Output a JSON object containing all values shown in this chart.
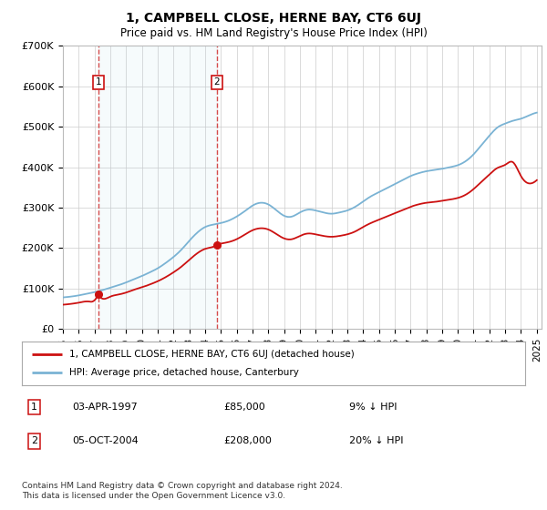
{
  "title": "1, CAMPBELL CLOSE, HERNE BAY, CT6 6UJ",
  "subtitle": "Price paid vs. HM Land Registry's House Price Index (HPI)",
  "ylim": [
    0,
    700000
  ],
  "yticks": [
    0,
    100000,
    200000,
    300000,
    400000,
    500000,
    600000,
    700000
  ],
  "ytick_labels": [
    "£0",
    "£100K",
    "£200K",
    "£300K",
    "£400K",
    "£500K",
    "£600K",
    "£700K"
  ],
  "x_start_year": 1995,
  "x_end_year": 2025,
  "sale1_date": 1997.25,
  "sale1_price": 85000,
  "sale2_date": 2004.75,
  "sale2_price": 208000,
  "hpi_color": "#7ab3d4",
  "price_color": "#cc1111",
  "dashed_line_color": "#cc1111",
  "plot_bg_color": "#ffffff",
  "fig_bg_color": "#ffffff",
  "grid_color": "#cccccc",
  "legend_label_price": "1, CAMPBELL CLOSE, HERNE BAY, CT6 6UJ (detached house)",
  "legend_label_hpi": "HPI: Average price, detached house, Canterbury",
  "footnote": "Contains HM Land Registry data © Crown copyright and database right 2024.\nThis data is licensed under the Open Government Licence v3.0.",
  "sale1_label": "1",
  "sale2_label": "2",
  "table_rows": [
    {
      "num": "1",
      "date": "03-APR-1997",
      "price": "£85,000",
      "hpi": "9% ↓ HPI"
    },
    {
      "num": "2",
      "date": "05-OCT-2004",
      "price": "£208,000",
      "hpi": "20% ↓ HPI"
    }
  ],
  "hpi_points": [
    [
      1995.0,
      78000
    ],
    [
      1995.5,
      80000
    ],
    [
      1996.0,
      83000
    ],
    [
      1996.5,
      87000
    ],
    [
      1997.0,
      91000
    ],
    [
      1997.5,
      96000
    ],
    [
      1998.0,
      102000
    ],
    [
      1998.5,
      108000
    ],
    [
      1999.0,
      115000
    ],
    [
      1999.5,
      123000
    ],
    [
      2000.0,
      131000
    ],
    [
      2000.5,
      140000
    ],
    [
      2001.0,
      150000
    ],
    [
      2001.5,
      163000
    ],
    [
      2002.0,
      178000
    ],
    [
      2002.5,
      196000
    ],
    [
      2003.0,
      218000
    ],
    [
      2003.5,
      238000
    ],
    [
      2004.0,
      252000
    ],
    [
      2004.5,
      258000
    ],
    [
      2005.0,
      262000
    ],
    [
      2005.5,
      268000
    ],
    [
      2006.0,
      278000
    ],
    [
      2006.5,
      291000
    ],
    [
      2007.0,
      305000
    ],
    [
      2007.5,
      312000
    ],
    [
      2008.0,
      308000
    ],
    [
      2008.5,
      294000
    ],
    [
      2009.0,
      280000
    ],
    [
      2009.5,
      278000
    ],
    [
      2010.0,
      288000
    ],
    [
      2010.5,
      295000
    ],
    [
      2011.0,
      293000
    ],
    [
      2011.5,
      288000
    ],
    [
      2012.0,
      285000
    ],
    [
      2012.5,
      288000
    ],
    [
      2013.0,
      293000
    ],
    [
      2013.5,
      302000
    ],
    [
      2014.0,
      315000
    ],
    [
      2014.5,
      328000
    ],
    [
      2015.0,
      338000
    ],
    [
      2015.5,
      348000
    ],
    [
      2016.0,
      358000
    ],
    [
      2016.5,
      368000
    ],
    [
      2017.0,
      378000
    ],
    [
      2017.5,
      385000
    ],
    [
      2018.0,
      390000
    ],
    [
      2018.5,
      393000
    ],
    [
      2019.0,
      396000
    ],
    [
      2019.5,
      400000
    ],
    [
      2020.0,
      405000
    ],
    [
      2020.5,
      415000
    ],
    [
      2021.0,
      432000
    ],
    [
      2021.5,
      455000
    ],
    [
      2022.0,
      478000
    ],
    [
      2022.5,
      498000
    ],
    [
      2023.0,
      508000
    ],
    [
      2023.5,
      515000
    ],
    [
      2024.0,
      520000
    ],
    [
      2024.5,
      528000
    ],
    [
      2025.0,
      535000
    ]
  ],
  "price_points_seg1": [
    [
      1995.0,
      60000
    ],
    [
      1995.5,
      62000
    ],
    [
      1996.0,
      65000
    ],
    [
      1996.5,
      68000
    ],
    [
      1997.0,
      71000
    ],
    [
      1997.25,
      85000
    ]
  ],
  "price_points_seg2": [
    [
      1997.25,
      85000
    ],
    [
      1997.5,
      75000
    ],
    [
      1998.0,
      80000
    ],
    [
      1998.5,
      85000
    ],
    [
      1999.0,
      90000
    ],
    [
      1999.5,
      97000
    ],
    [
      2000.0,
      103000
    ],
    [
      2000.5,
      110000
    ],
    [
      2001.0,
      118000
    ],
    [
      2001.5,
      128000
    ],
    [
      2002.0,
      140000
    ],
    [
      2002.5,
      154000
    ],
    [
      2003.0,
      171000
    ],
    [
      2003.5,
      187000
    ],
    [
      2004.0,
      198000
    ],
    [
      2004.5,
      203000
    ],
    [
      2004.75,
      208000
    ]
  ],
  "price_points_seg3": [
    [
      2004.75,
      208000
    ],
    [
      2005.0,
      211000
    ],
    [
      2005.5,
      215000
    ],
    [
      2006.0,
      222000
    ],
    [
      2006.5,
      233000
    ],
    [
      2007.0,
      244000
    ],
    [
      2007.5,
      249000
    ],
    [
      2008.0,
      246000
    ],
    [
      2008.5,
      235000
    ],
    [
      2009.0,
      224000
    ],
    [
      2009.5,
      222000
    ],
    [
      2010.0,
      230000
    ],
    [
      2010.5,
      236000
    ],
    [
      2011.0,
      234000
    ],
    [
      2011.5,
      230000
    ],
    [
      2012.0,
      228000
    ],
    [
      2012.5,
      230000
    ],
    [
      2013.0,
      234000
    ],
    [
      2013.5,
      241000
    ],
    [
      2014.0,
      252000
    ],
    [
      2014.5,
      262000
    ],
    [
      2015.0,
      270000
    ],
    [
      2015.5,
      278000
    ],
    [
      2016.0,
      286000
    ],
    [
      2016.5,
      294000
    ],
    [
      2017.0,
      302000
    ],
    [
      2017.5,
      308000
    ],
    [
      2018.0,
      312000
    ],
    [
      2018.5,
      314000
    ],
    [
      2019.0,
      317000
    ],
    [
      2019.5,
      320000
    ],
    [
      2020.0,
      324000
    ],
    [
      2020.5,
      332000
    ],
    [
      2021.0,
      346000
    ],
    [
      2021.5,
      364000
    ],
    [
      2022.0,
      382000
    ],
    [
      2022.5,
      398000
    ],
    [
      2023.0,
      406000
    ],
    [
      2023.5,
      412000
    ],
    [
      2024.0,
      378000
    ],
    [
      2024.5,
      360000
    ],
    [
      2025.0,
      368000
    ]
  ]
}
